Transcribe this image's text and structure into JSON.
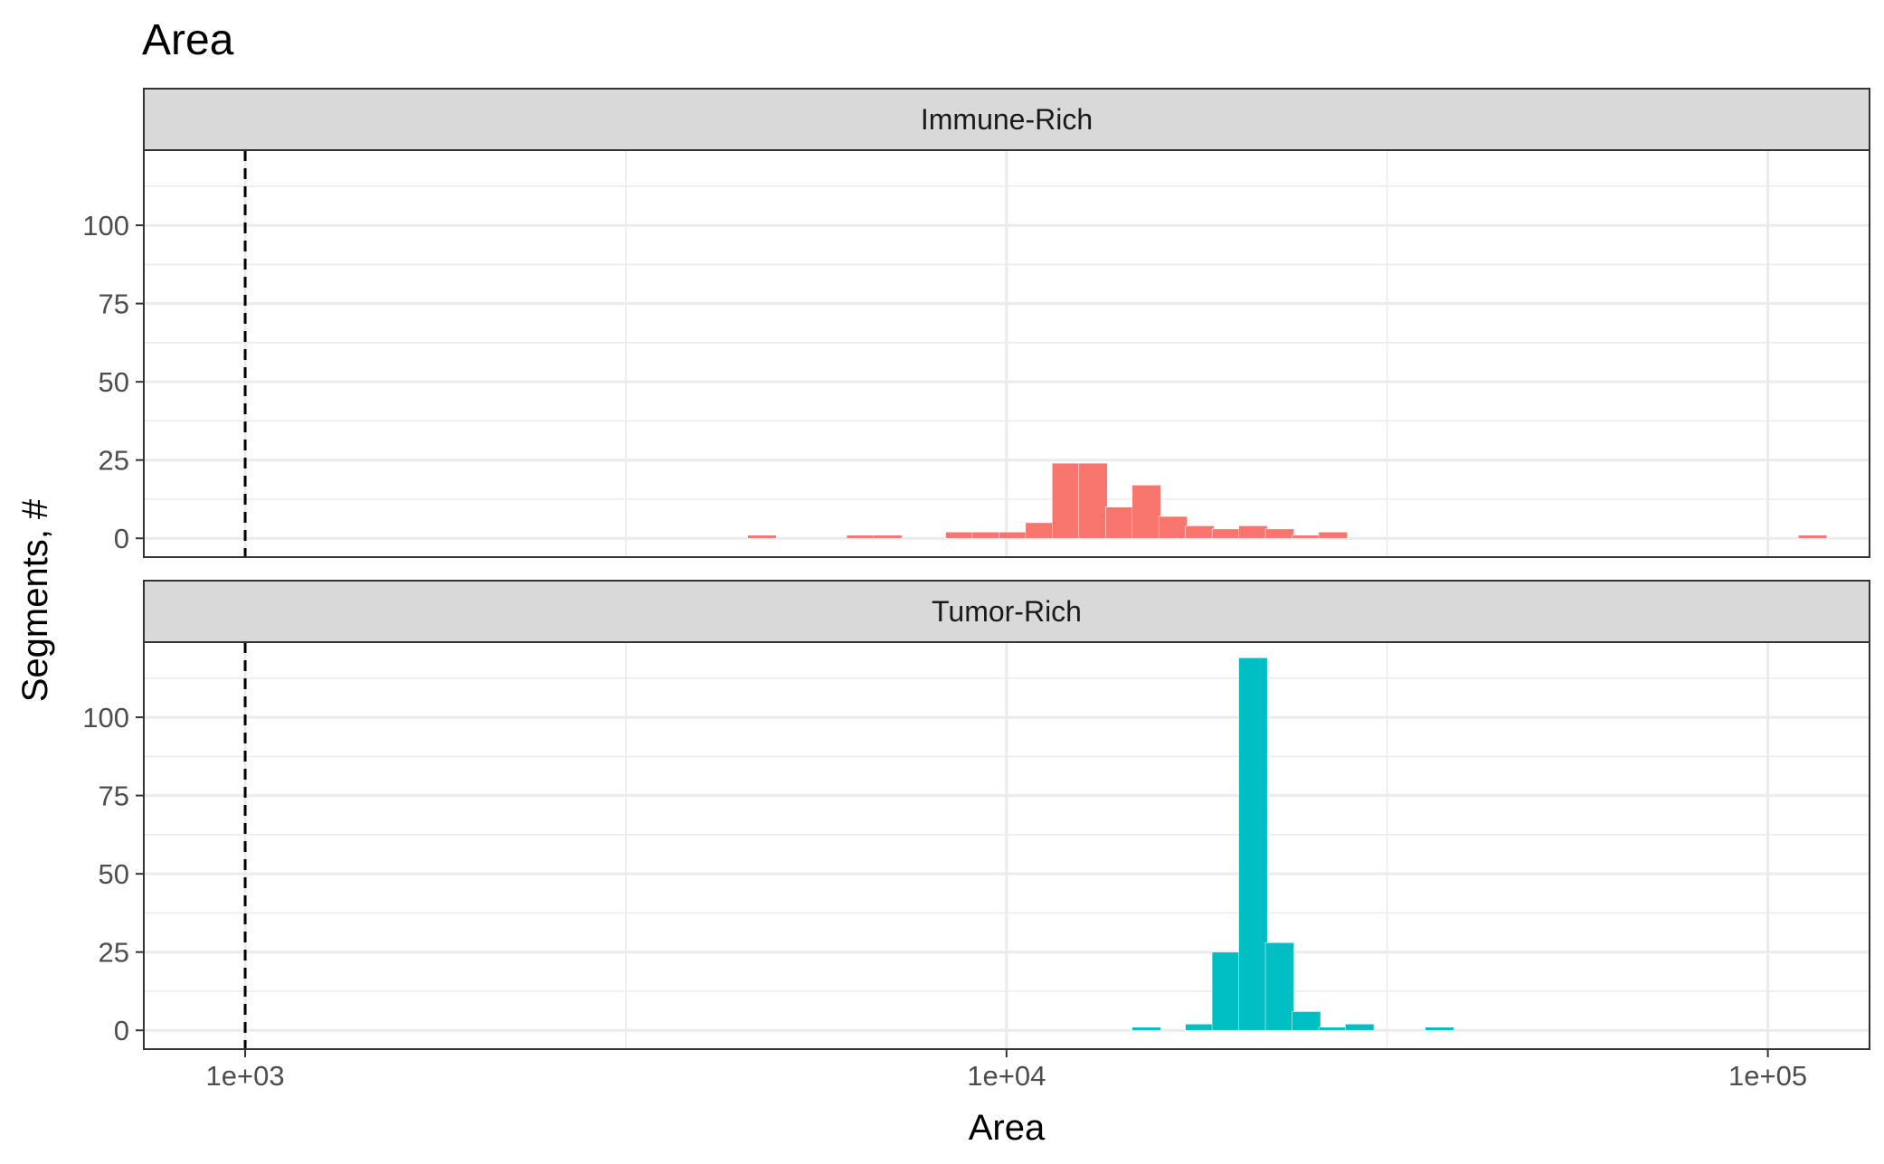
{
  "chart_data": {
    "type": "bar",
    "title": "Area",
    "xlabel": "Area",
    "ylabel": "Segments, #",
    "x_scale": "log10",
    "xlim": [
      736,
      136000
    ],
    "ylim": [
      -6,
      124
    ],
    "x_ticks": [
      {
        "value": 1000,
        "label": "1e+03"
      },
      {
        "value": 10000,
        "label": "1e+04"
      },
      {
        "value": 100000,
        "label": "1e+05"
      }
    ],
    "y_ticks": [
      {
        "value": 0,
        "label": "0"
      },
      {
        "value": 25,
        "label": "25"
      },
      {
        "value": 50,
        "label": "50"
      },
      {
        "value": 75,
        "label": "75"
      },
      {
        "value": 100,
        "label": "100"
      }
    ],
    "threshold": {
      "value": 1000,
      "style": "dashed"
    },
    "grid": true,
    "legend": "none",
    "bin_width_log10": 0.0375,
    "panels": [
      {
        "name": "Immune-Rich",
        "color": "#F8766D",
        "bins": [
          {
            "x_start": 4571,
            "count": 1
          },
          {
            "x_start": 6166,
            "count": 1
          },
          {
            "x_start": 6683,
            "count": 1
          },
          {
            "x_start": 8318,
            "count": 2
          },
          {
            "x_start": 9016,
            "count": 2
          },
          {
            "x_start": 9772,
            "count": 2
          },
          {
            "x_start": 10593,
            "count": 5
          },
          {
            "x_start": 11481,
            "count": 24
          },
          {
            "x_start": 12445,
            "count": 24
          },
          {
            "x_start": 13490,
            "count": 10
          },
          {
            "x_start": 14622,
            "count": 17
          },
          {
            "x_start": 15849,
            "count": 7
          },
          {
            "x_start": 17179,
            "count": 4
          },
          {
            "x_start": 18621,
            "count": 3
          },
          {
            "x_start": 20184,
            "count": 4
          },
          {
            "x_start": 21878,
            "count": 3
          },
          {
            "x_start": 23714,
            "count": 1
          },
          {
            "x_start": 25704,
            "count": 2
          },
          {
            "x_start": 109648,
            "count": 1
          }
        ]
      },
      {
        "name": "Tumor-Rich",
        "color": "#00BFC4",
        "bins": [
          {
            "x_start": 14622,
            "count": 1
          },
          {
            "x_start": 17179,
            "count": 2
          },
          {
            "x_start": 18621,
            "count": 25
          },
          {
            "x_start": 20184,
            "count": 119
          },
          {
            "x_start": 21878,
            "count": 28
          },
          {
            "x_start": 23714,
            "count": 6
          },
          {
            "x_start": 25704,
            "count": 1
          },
          {
            "x_start": 27861,
            "count": 2
          },
          {
            "x_start": 35481,
            "count": 1
          }
        ]
      }
    ]
  }
}
